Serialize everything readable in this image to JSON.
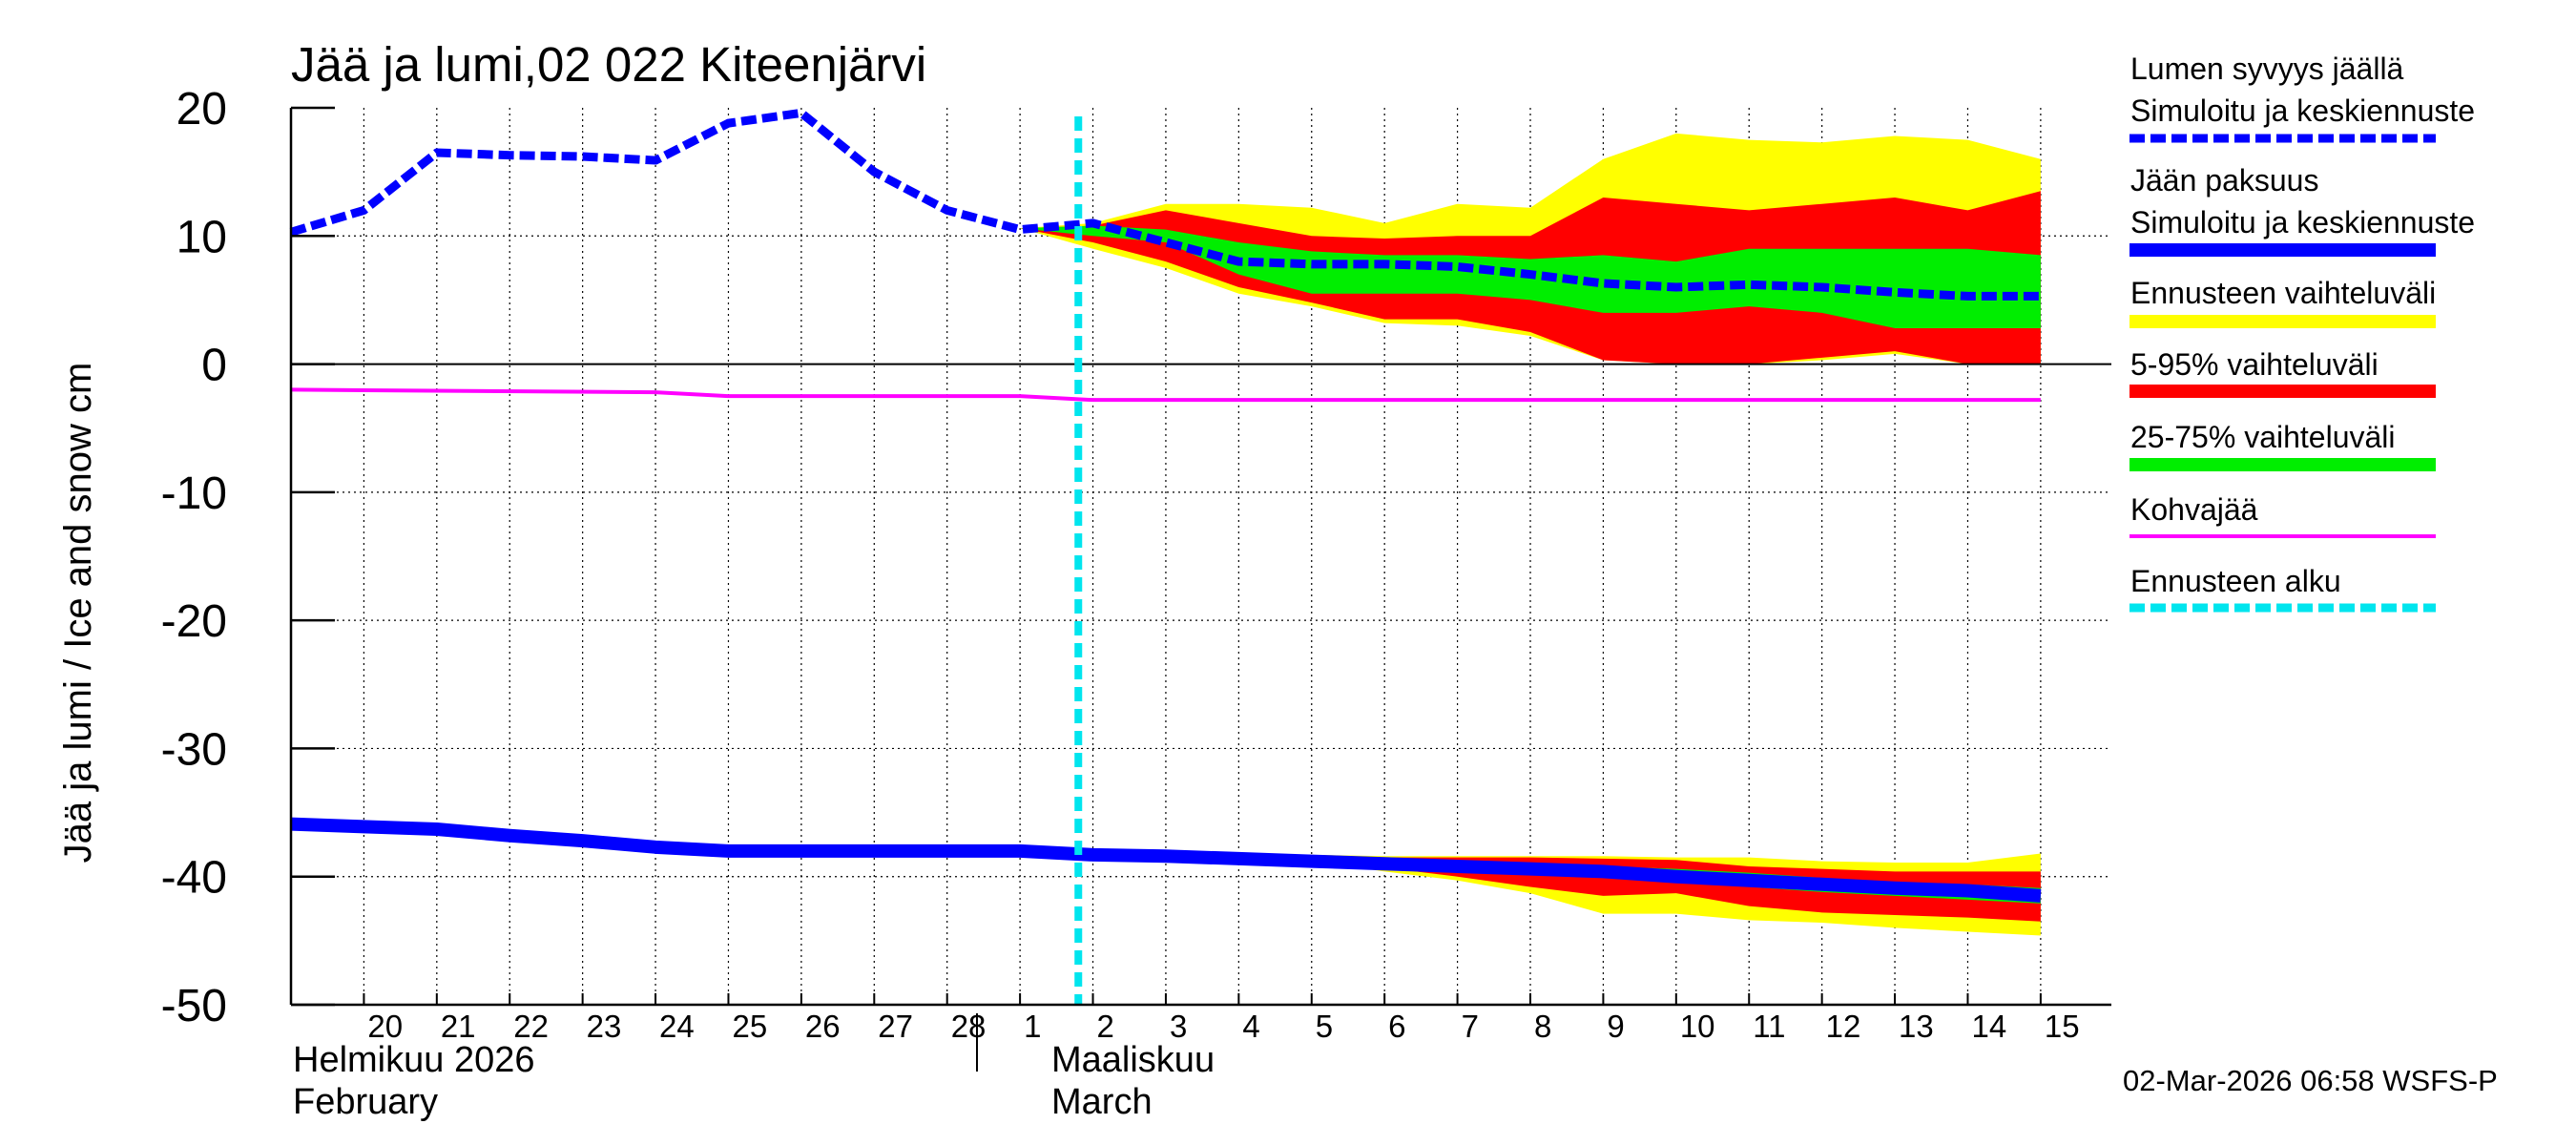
{
  "chart_data": {
    "type": "area",
    "title": "Jää ja lumi,02 022 Kiteenjärvi",
    "ylabel": "Jää ja lumi / Ice and snow    cm",
    "ylim": [
      -50,
      20
    ],
    "yticks": [
      20,
      10,
      0,
      -10,
      -20,
      -30,
      -40,
      -50
    ],
    "x_start_day": 19,
    "x_end_day": 43,
    "day_labels": [
      {
        "day": 20,
        "label": "20"
      },
      {
        "day": 21,
        "label": "21"
      },
      {
        "day": 22,
        "label": "22"
      },
      {
        "day": 23,
        "label": "23"
      },
      {
        "day": 24,
        "label": "24"
      },
      {
        "day": 25,
        "label": "25"
      },
      {
        "day": 26,
        "label": "26"
      },
      {
        "day": 27,
        "label": "27"
      },
      {
        "day": 28,
        "label": "28"
      },
      {
        "day": 29,
        "label": "1"
      },
      {
        "day": 30,
        "label": "2"
      },
      {
        "day": 31,
        "label": "3"
      },
      {
        "day": 32,
        "label": "4"
      },
      {
        "day": 33,
        "label": "5"
      },
      {
        "day": 34,
        "label": "6"
      },
      {
        "day": 35,
        "label": "7"
      },
      {
        "day": 36,
        "label": "8"
      },
      {
        "day": 37,
        "label": "9"
      },
      {
        "day": 38,
        "label": "10"
      },
      {
        "day": 39,
        "label": "11"
      },
      {
        "day": 40,
        "label": "12"
      },
      {
        "day": 41,
        "label": "13"
      },
      {
        "day": 42,
        "label": "14"
      },
      {
        "day": 43,
        "label": "15"
      }
    ],
    "month_labels": {
      "feb_fi": "Helmikuu  2026",
      "feb_en": "February",
      "mar_fi": "Maaliskuu",
      "mar_en": "March"
    },
    "forecast_start_day": 29.8,
    "snow_depth": {
      "x": [
        19,
        20,
        21,
        22,
        23,
        24,
        25,
        26,
        27,
        28,
        29,
        30,
        31,
        32,
        33,
        34,
        35,
        36,
        37,
        38,
        39,
        40,
        41,
        42,
        43
      ],
      "y": [
        10.3,
        12,
        16.5,
        16.3,
        16.2,
        15.9,
        18.8,
        19.6,
        15,
        12,
        10.5,
        11,
        9.5,
        8,
        7.8,
        7.8,
        7.6,
        7,
        6.3,
        6,
        6.2,
        6,
        5.6,
        5.3,
        5.3
      ]
    },
    "snow_bands": {
      "x": [
        29,
        30,
        31,
        32,
        33,
        34,
        35,
        36,
        37,
        38,
        39,
        40,
        41,
        42,
        43
      ],
      "full_min": [
        10.6,
        9,
        7.5,
        5.5,
        4.5,
        3.2,
        3,
        2.2,
        0.3,
        0,
        0,
        0.3,
        0.8,
        0,
        0
      ],
      "full_max": [
        10.6,
        11,
        12.5,
        12.5,
        12.2,
        11,
        12.5,
        12.2,
        16,
        18,
        17.5,
        17.3,
        17.8,
        17.5,
        16
      ],
      "p5": [
        10.6,
        9.5,
        8,
        6,
        4.8,
        3.5,
        3.5,
        2.5,
        0.3,
        0,
        0,
        0.5,
        1,
        0,
        0
      ],
      "p95": [
        10.6,
        10.8,
        12,
        11,
        10,
        9.8,
        10,
        10,
        13,
        12.5,
        12,
        12.5,
        13,
        12,
        13.5
      ],
      "p25": [
        10.6,
        10,
        9.5,
        7,
        5.5,
        5.5,
        5.5,
        5,
        4,
        4,
        4.5,
        4,
        2.8,
        2.8,
        2.8
      ],
      "p75": [
        10.6,
        10.8,
        10.5,
        9.5,
        8.8,
        8.5,
        8.5,
        8.2,
        8.5,
        8,
        9,
        9,
        9,
        9,
        8.5
      ]
    },
    "ice_thickness": {
      "x": [
        19,
        20,
        21,
        22,
        23,
        24,
        25,
        26,
        27,
        28,
        29,
        30,
        31,
        32,
        33,
        34,
        35,
        36,
        37,
        38,
        39,
        40,
        41,
        42,
        43
      ],
      "y": [
        -35.9,
        -36.1,
        -36.3,
        -36.8,
        -37.2,
        -37.7,
        -38,
        -38,
        -38,
        -38,
        -38,
        -38.3,
        -38.4,
        -38.6,
        -38.8,
        -39,
        -39.2,
        -39.4,
        -39.6,
        -40,
        -40.3,
        -40.6,
        -40.9,
        -41.1,
        -41.5
      ]
    },
    "ice_bands": {
      "x": [
        31,
        32,
        33,
        34,
        35,
        36,
        37,
        38,
        39,
        40,
        41,
        42,
        43
      ],
      "full_min": [
        -38.4,
        -38.5,
        -38.8,
        -39.6,
        -40.3,
        -41.3,
        -42.9,
        -42.9,
        -43.4,
        -43.6,
        -44,
        -44.3,
        -44.6
      ],
      "full_max": [
        -38.4,
        -38.3,
        -38.3,
        -38.4,
        -38.4,
        -38.4,
        -38.4,
        -38.5,
        -38.5,
        -38.8,
        -38.9,
        -38.9,
        -38.2
      ],
      "p5": [
        -38.4,
        -38.4,
        -38.6,
        -39.3,
        -40,
        -40.8,
        -41.5,
        -41.3,
        -42.3,
        -42.8,
        -43,
        -43.2,
        -43.5
      ],
      "p95": [
        -38.4,
        -38.3,
        -38.3,
        -38.5,
        -38.5,
        -38.5,
        -38.6,
        -38.7,
        -39.2,
        -39.4,
        -39.6,
        -39.6,
        -39.6
      ],
      "p25": [
        -38.4,
        -38.4,
        -38.5,
        -38.9,
        -39.4,
        -39.7,
        -40.1,
        -40.4,
        -40.8,
        -41.2,
        -41.5,
        -41.8,
        -42.1
      ],
      "p75": [
        -38.4,
        -38.4,
        -38.4,
        -38.6,
        -38.8,
        -39,
        -39.2,
        -39.4,
        -39.7,
        -40.1,
        -40.4,
        -40.6,
        -40.9
      ]
    },
    "slush_ice": {
      "x": [
        19,
        24,
        25,
        29,
        30,
        43
      ],
      "y": [
        -2,
        -2.2,
        -2.5,
        -2.5,
        -2.8,
        -2.8
      ]
    },
    "legend": [
      {
        "label": "Lumen syvyys jäällä",
        "label2": "Simuloitu ja keskiennuste",
        "color": "#0000ff",
        "style": "dashed"
      },
      {
        "label": "Jään paksuus",
        "label2": "Simuloitu ja keskiennuste",
        "color": "#0000ff",
        "style": "solid"
      },
      {
        "label": "Ennusteen vaihteluväli",
        "color": "#ffff00",
        "style": "solid"
      },
      {
        "label": "5-95% vaihteluväli",
        "color": "#ff0000",
        "style": "solid"
      },
      {
        "label": "25-75% vaihteluväli",
        "color": "#00ee00",
        "style": "solid"
      },
      {
        "label": "Kohvajää",
        "color": "#ff00ff",
        "style": "thin"
      },
      {
        "label": "Ennusteen alku",
        "color": "#00e5ee",
        "style": "dashed"
      }
    ],
    "timestamp": "02-Mar-2026 06:58 WSFS-P"
  }
}
